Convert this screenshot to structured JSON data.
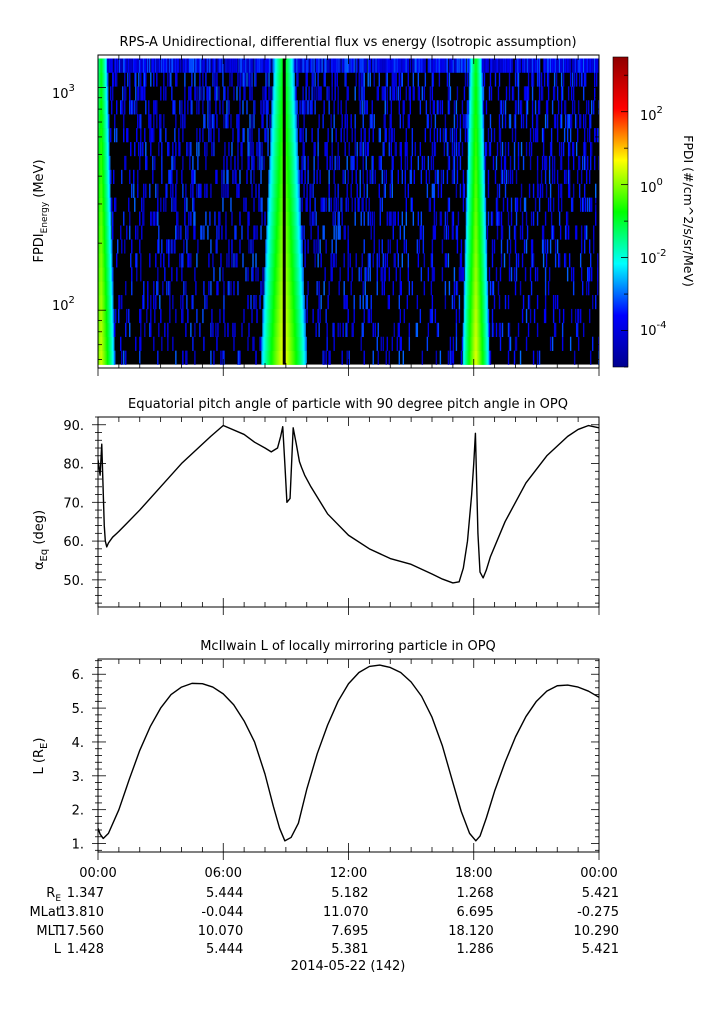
{
  "panels": {
    "spectrogram": {
      "title": "RPS-A Unidirectional, differential flux vs energy (Isotropic assumption)",
      "ylabel_main": "FPDI",
      "ylabel_sub": "Energy",
      "ylabel_unit": " (MeV)",
      "ytick_main": "10",
      "ytick_labels": [
        {
          "exp": "3"
        },
        {
          "exp": "2"
        }
      ],
      "colorbar": {
        "label": "FPDI (#/cm^2/s/sr/MeV)",
        "tick_main": "10",
        "tick_labels": [
          {
            "exp": "2"
          },
          {
            "exp": "0"
          },
          {
            "exp": "-2"
          },
          {
            "exp": "-4"
          }
        ]
      }
    },
    "pitch": {
      "title": "Equatorial pitch angle of particle with 90 degree pitch angle in OPQ",
      "ylabel_main": "α",
      "ylabel_sub": "Eq",
      "ylabel_unit": " (deg)",
      "yticks": [
        "90.",
        "80.",
        "70.",
        "60.",
        "50."
      ]
    },
    "lshell": {
      "title": "McIlwain L of locally mirroring particle in OPQ",
      "ylabel_main": "L (R",
      "ylabel_sub": "E",
      "ylabel_end": ")",
      "yticks": [
        "6.",
        "5.",
        "4.",
        "3.",
        "2.",
        "1."
      ]
    }
  },
  "xaxis": {
    "ticks": [
      "00:00",
      "06:00",
      "12:00",
      "18:00",
      "00:00"
    ],
    "date_label": "2014-05-22 (142)"
  },
  "ephemeris": {
    "labels": [
      {
        "main": "R",
        "sub": "E"
      },
      {
        "main": "MLat",
        "sub": ""
      },
      {
        "main": "MLT",
        "sub": ""
      },
      {
        "main": "L",
        "sub": ""
      }
    ],
    "rows": [
      [
        "1.347",
        "5.444",
        "5.182",
        "1.268",
        "5.421"
      ],
      [
        "13.810",
        "-0.044",
        "11.070",
        "6.695",
        "-0.275"
      ],
      [
        "17.560",
        "10.070",
        "7.695",
        "18.120",
        "10.290"
      ],
      [
        "1.428",
        "5.444",
        "5.381",
        "1.286",
        "5.421"
      ]
    ]
  },
  "colors": {
    "colormap": [
      "#00008f",
      "#0000ff",
      "#00ffff",
      "#00ff00",
      "#ffff00",
      "#ff0000",
      "#8f0000"
    ],
    "background": "#000000",
    "line": "#000000"
  },
  "chart_data": [
    {
      "type": "heatmap",
      "title": "RPS-A Unidirectional, differential flux vs energy (Isotropic assumption)",
      "xlabel": "",
      "ylabel": "FPDI Energy (MeV)",
      "x_range_hours": [
        0,
        24
      ],
      "y_scale": "log",
      "ylim_mev": [
        55,
        1400
      ],
      "colorbar_scale": "log",
      "colorbar_range_log10": [
        -5,
        3.5
      ],
      "background_fill": "black",
      "flux_bands": [
        {
          "center_hour": 0.15,
          "low_hour": 0.0,
          "high_hour": 1.3,
          "peak_log10_flux": 0.4
        },
        {
          "center_hour": 8.9,
          "low_hour": 7.9,
          "high_hour": 10.1,
          "peak_log10_flux": 0.7
        },
        {
          "center_hour": 18.1,
          "low_hour": 17.6,
          "high_hour": 18.9,
          "peak_log10_flux": 0.5
        }
      ]
    },
    {
      "type": "line",
      "title": "Equatorial pitch angle of particle with 90 degree pitch angle in OPQ",
      "xlabel": "",
      "ylabel": "αEq (deg)",
      "ylim": [
        43,
        92
      ],
      "series": [
        {
          "x": [
            0.0,
            0.1,
            0.18,
            0.22,
            0.3,
            0.35,
            0.42,
            0.5,
            0.7,
            0.9,
            1.0,
            2.0,
            3.0,
            4.0,
            5.0,
            5.4,
            6.0,
            7.0,
            7.5,
            8.0,
            8.3,
            8.6,
            8.75,
            8.85,
            8.95,
            9.05,
            9.2,
            9.35,
            9.5,
            9.65,
            9.75,
            9.9,
            10.2,
            11.0,
            12.0,
            13.0,
            14.0,
            15.0,
            16.0,
            16.5,
            17.0,
            17.3,
            17.5,
            17.7,
            17.9,
            18.0,
            18.08,
            18.2,
            18.3,
            18.45,
            18.6,
            18.8,
            19.5,
            20.5,
            21.5,
            22.5,
            23.0,
            23.5,
            24.0
          ],
          "y": [
            81,
            77,
            85,
            78,
            64,
            60,
            58.5,
            59.5,
            61,
            62,
            62.5,
            68,
            74,
            80,
            85,
            87,
            89.8,
            87.5,
            85.5,
            84,
            83,
            84,
            87,
            89.5,
            80,
            70,
            71,
            89.2,
            85,
            80.5,
            79,
            77,
            74,
            67,
            61.5,
            58,
            55.5,
            54,
            51.5,
            50.2,
            49.2,
            49.5,
            53,
            60,
            72,
            80,
            87.8,
            62,
            52,
            50.5,
            52.5,
            56,
            65,
            75,
            82,
            87,
            88.8,
            89.8,
            89.2
          ]
        }
      ]
    },
    {
      "type": "line",
      "title": "McIlwain L of locally mirroring particle in OPQ",
      "xlabel": "",
      "ylabel": "L (RE)",
      "ylim": [
        0.75,
        6.45
      ],
      "series": [
        {
          "x": [
            0.0,
            0.1,
            0.25,
            0.5,
            1.0,
            1.5,
            2.0,
            2.5,
            3.0,
            3.5,
            4.0,
            4.5,
            5.0,
            5.5,
            6.0,
            6.5,
            7.0,
            7.5,
            8.0,
            8.4,
            8.7,
            8.95,
            9.25,
            9.6,
            10.0,
            10.5,
            11.0,
            11.5,
            12.0,
            12.5,
            13.0,
            13.5,
            14.0,
            14.5,
            15.0,
            15.5,
            16.0,
            16.5,
            17.0,
            17.4,
            17.8,
            18.1,
            18.3,
            18.6,
            19.0,
            19.5,
            20.0,
            20.5,
            21.0,
            21.5,
            22.0,
            22.5,
            23.0,
            23.5,
            24.0
          ],
          "y": [
            1.45,
            1.28,
            1.15,
            1.3,
            2.0,
            2.9,
            3.75,
            4.45,
            5.0,
            5.4,
            5.62,
            5.73,
            5.72,
            5.62,
            5.42,
            5.1,
            4.62,
            4.0,
            3.05,
            2.1,
            1.45,
            1.08,
            1.18,
            1.6,
            2.6,
            3.65,
            4.5,
            5.2,
            5.72,
            6.05,
            6.23,
            6.27,
            6.2,
            6.05,
            5.77,
            5.35,
            4.73,
            3.88,
            2.8,
            1.95,
            1.3,
            1.08,
            1.22,
            1.75,
            2.55,
            3.4,
            4.15,
            4.75,
            5.2,
            5.5,
            5.66,
            5.68,
            5.62,
            5.5,
            5.32
          ]
        }
      ]
    }
  ]
}
